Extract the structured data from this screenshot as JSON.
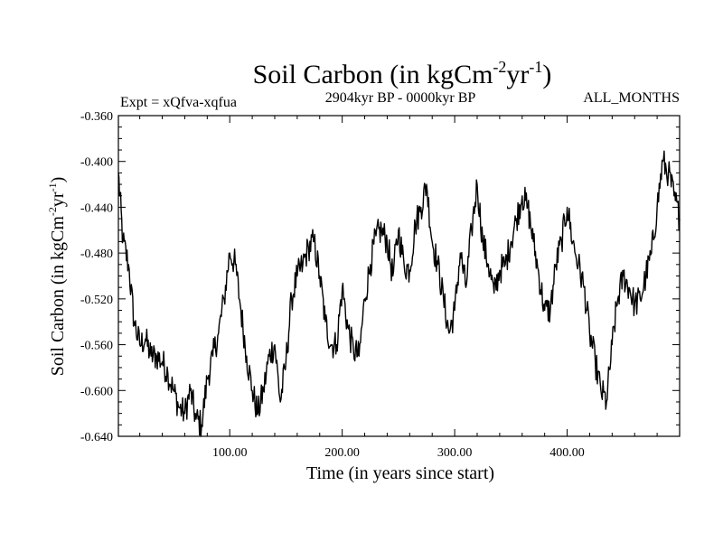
{
  "chart_data": {
    "type": "line",
    "title": {
      "main": "Soil Carbon (in kgCm",
      "sup1": "-2",
      "mid": "yr",
      "sup2": "-1",
      "end": ")"
    },
    "subtitle_left": "Expt = xQfva-xqfua",
    "subtitle_center": "2904kyr BP - 0000kyr BP",
    "subtitle_right": "ALL_MONTHS",
    "xlabel": "Time (in years since start)",
    "ylabel": {
      "main": "Soil Carbon (in kgCm",
      "sup1": "-2",
      "mid": "yr",
      "sup2": "-1",
      "end": ")"
    },
    "xlim": [
      1,
      500
    ],
    "ylim": [
      -0.64,
      -0.36
    ],
    "x_ticks": [
      100,
      200,
      300,
      400
    ],
    "x_tick_labels": [
      "100.00",
      "200.00",
      "300.00",
      "400.00"
    ],
    "y_ticks": [
      -0.36,
      -0.4,
      -0.44,
      -0.48,
      -0.52,
      -0.56,
      -0.6,
      -0.64
    ],
    "y_tick_labels": [
      "-0.360",
      "-0.400",
      "-0.440",
      "-0.480",
      "-0.520",
      "-0.560",
      "-0.600",
      "-0.640"
    ],
    "series": [
      {
        "name": "Soil Carbon",
        "color": "#000000",
        "x": [
          1,
          5,
          10,
          15,
          20,
          25,
          30,
          35,
          40,
          45,
          50,
          55,
          60,
          65,
          70,
          75,
          80,
          85,
          90,
          95,
          100,
          105,
          110,
          115,
          120,
          125,
          130,
          135,
          140,
          145,
          150,
          155,
          160,
          165,
          170,
          175,
          180,
          185,
          190,
          195,
          200,
          205,
          210,
          215,
          220,
          225,
          230,
          235,
          240,
          245,
          250,
          255,
          260,
          265,
          270,
          275,
          280,
          285,
          290,
          295,
          300,
          305,
          310,
          315,
          320,
          325,
          330,
          335,
          340,
          345,
          350,
          355,
          360,
          365,
          370,
          375,
          380,
          385,
          390,
          395,
          400,
          405,
          410,
          415,
          420,
          425,
          430,
          435,
          440,
          445,
          450,
          455,
          460,
          465,
          470,
          475,
          480,
          485,
          490,
          495,
          500
        ],
        "y": [
          -0.41,
          -0.47,
          -0.49,
          -0.54,
          -0.56,
          -0.555,
          -0.57,
          -0.57,
          -0.575,
          -0.585,
          -0.6,
          -0.615,
          -0.62,
          -0.6,
          -0.625,
          -0.63,
          -0.59,
          -0.57,
          -0.55,
          -0.52,
          -0.48,
          -0.49,
          -0.53,
          -0.57,
          -0.6,
          -0.62,
          -0.6,
          -0.57,
          -0.56,
          -0.61,
          -0.575,
          -0.52,
          -0.5,
          -0.49,
          -0.475,
          -0.47,
          -0.5,
          -0.54,
          -0.56,
          -0.56,
          -0.51,
          -0.545,
          -0.565,
          -0.57,
          -0.52,
          -0.49,
          -0.465,
          -0.46,
          -0.47,
          -0.5,
          -0.46,
          -0.49,
          -0.495,
          -0.455,
          -0.44,
          -0.42,
          -0.47,
          -0.49,
          -0.52,
          -0.55,
          -0.53,
          -0.48,
          -0.51,
          -0.46,
          -0.42,
          -0.47,
          -0.49,
          -0.515,
          -0.495,
          -0.49,
          -0.47,
          -0.45,
          -0.43,
          -0.44,
          -0.47,
          -0.5,
          -0.53,
          -0.53,
          -0.49,
          -0.47,
          -0.44,
          -0.47,
          -0.49,
          -0.51,
          -0.55,
          -0.575,
          -0.6,
          -0.61,
          -0.56,
          -0.52,
          -0.5,
          -0.51,
          -0.525,
          -0.52,
          -0.5,
          -0.48,
          -0.44,
          -0.4,
          -0.41,
          -0.43,
          -0.45
        ]
      }
    ]
  }
}
